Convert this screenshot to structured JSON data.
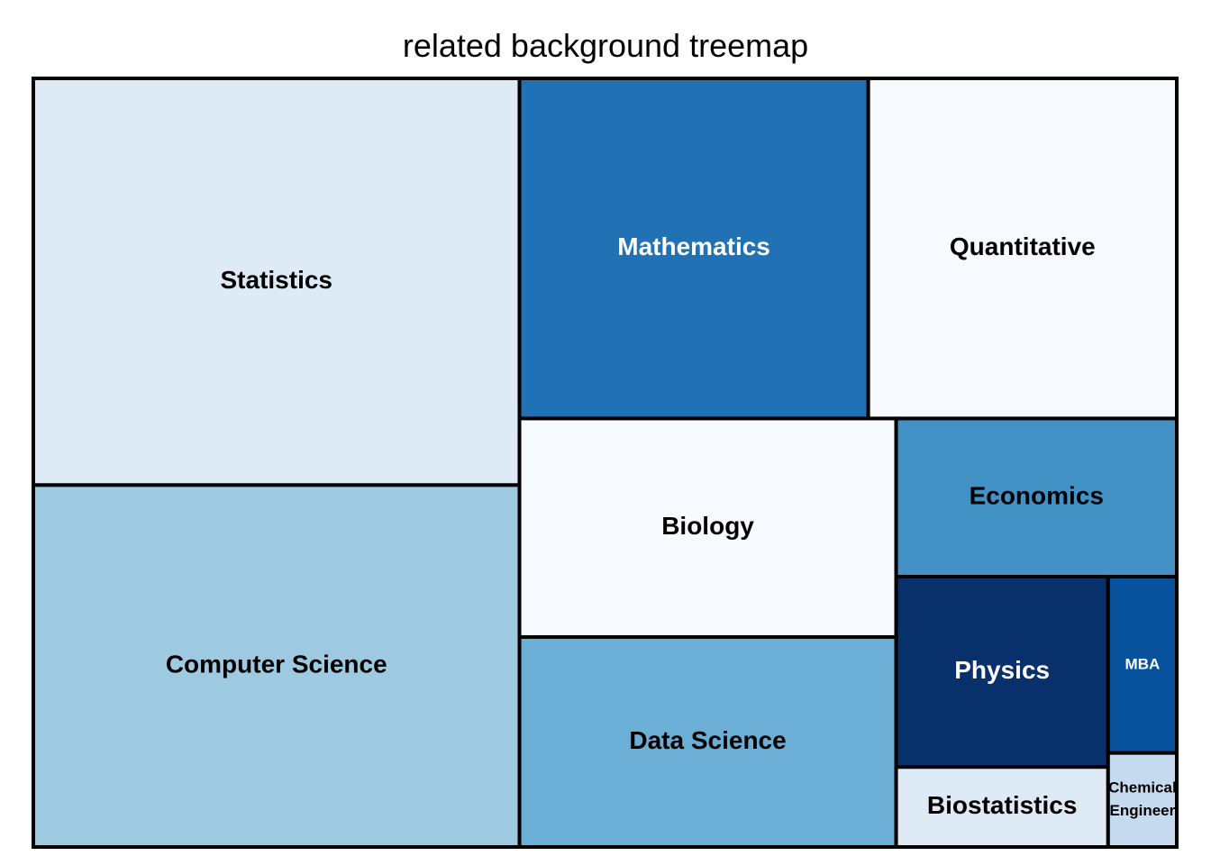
{
  "chart_data": {
    "type": "treemap",
    "title": "related background treemap",
    "items": [
      {
        "label": "Statistics",
        "value": 245,
        "color": "#deebf7",
        "text_color": "#000000"
      },
      {
        "label": "Computer Science",
        "value": 218,
        "color": "#9ecae1",
        "text_color": "#000000"
      },
      {
        "label": "Mathematics",
        "value": 147,
        "color": "#2171b5",
        "text_color": "#ffffff"
      },
      {
        "label": "Quantitative",
        "value": 130,
        "color": "#f7fbff",
        "text_color": "#000000"
      },
      {
        "label": "Biology",
        "value": 102,
        "color": "#f7fbff",
        "text_color": "#000000"
      },
      {
        "label": "Data Science",
        "value": 98,
        "color": "#6baed6",
        "text_color": "#000000"
      },
      {
        "label": "Economics",
        "value": 55,
        "color": "#4292c6",
        "text_color": "#000000"
      },
      {
        "label": "Physics",
        "value": 50,
        "color": "#08306b",
        "text_color": "#ffffff"
      },
      {
        "label": "Biostatistics",
        "value": 21,
        "color": "#deebf7",
        "text_color": "#000000"
      },
      {
        "label": "MBA",
        "value": 15,
        "color": "#08519c",
        "text_color": "#ffffff"
      },
      {
        "label": "Chemical Engineer",
        "value": 8,
        "color": "#c6dbef",
        "text_color": "#000000"
      }
    ]
  }
}
